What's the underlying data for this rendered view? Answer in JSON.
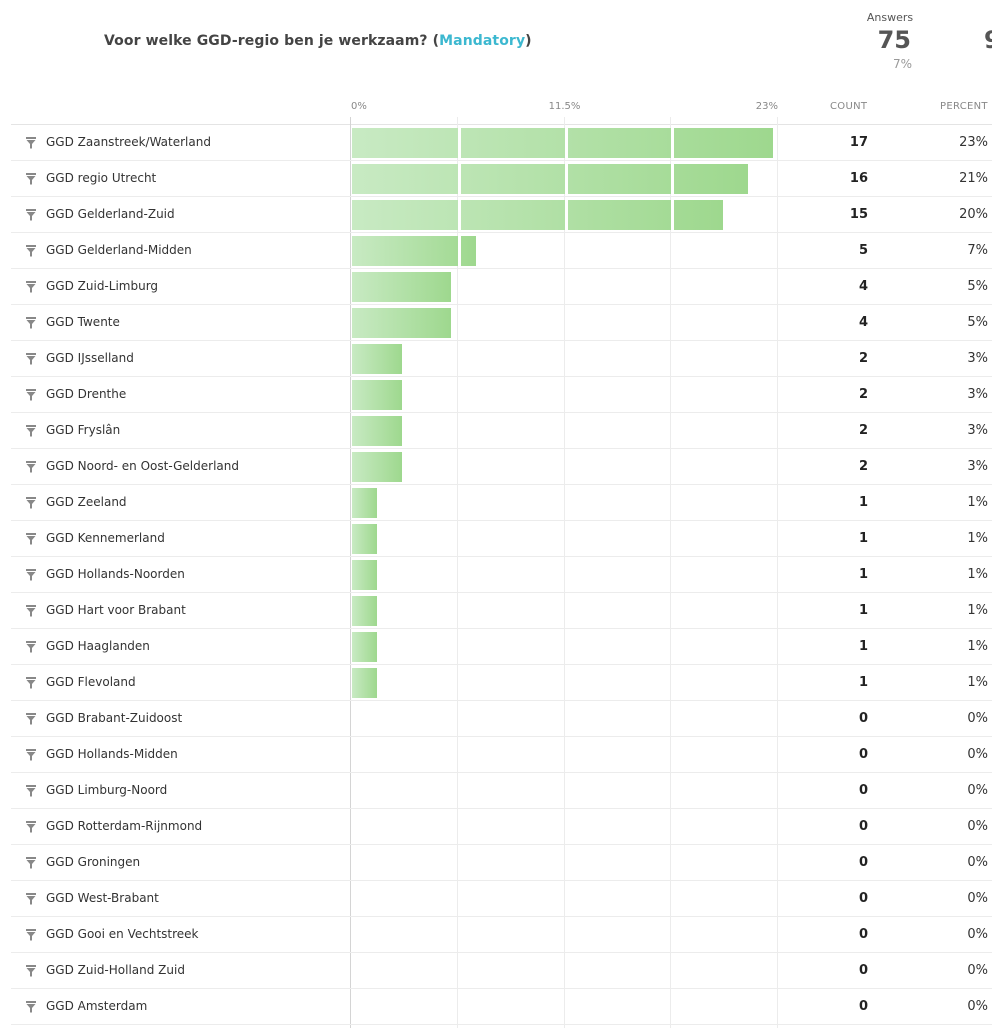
{
  "question": {
    "text": "Voor welke GGD-regio ben je werkzaam? (",
    "mandatory": "Mandatory",
    "close": ")"
  },
  "answers": {
    "label": "Answers",
    "value": "75",
    "percent": "7%",
    "clipped_next": "9"
  },
  "columns": {
    "count": "COUNT",
    "percent": "PERCENT"
  },
  "colors": {
    "bar_start": "#c8eac3",
    "bar_end": "#9ed88e",
    "accent": "#3cb8d0"
  },
  "icons": {
    "row_filter": "filter-funnel-icon"
  },
  "chart_data": {
    "type": "bar",
    "orientation": "horizontal",
    "title": "Voor welke GGD-regio ben je werkzaam?",
    "xlim": [
      0,
      23
    ],
    "ticks": [
      "0%",
      "11.5%",
      "23%"
    ],
    "grid": true,
    "categories": [
      "GGD Zaanstreek/Waterland",
      "GGD regio Utrecht",
      "GGD Gelderland-Zuid",
      "GGD Gelderland-Midden",
      "GGD Zuid-Limburg",
      "GGD Twente",
      "GGD IJsselland",
      "GGD Drenthe",
      "GGD Fryslân",
      "GGD Noord- en Oost-Gelderland",
      "GGD Zeeland",
      "GGD Kennemerland",
      "GGD Hollands-Noorden",
      "GGD Hart voor Brabant",
      "GGD Haaglanden",
      "GGD Flevoland",
      "GGD Brabant-Zuidoost",
      "GGD Hollands-Midden",
      "GGD Limburg-Noord",
      "GGD Rotterdam-Rijnmond",
      "GGD Groningen",
      "GGD West-Brabant",
      "GGD Gooi en Vechtstreek",
      "GGD Zuid-Holland Zuid",
      "GGD Amsterdam"
    ],
    "counts": [
      17,
      16,
      15,
      5,
      4,
      4,
      2,
      2,
      2,
      2,
      1,
      1,
      1,
      1,
      1,
      1,
      0,
      0,
      0,
      0,
      0,
      0,
      0,
      0,
      0
    ],
    "percents": [
      "23%",
      "21%",
      "20%",
      "7%",
      "5%",
      "5%",
      "3%",
      "3%",
      "3%",
      "3%",
      "1%",
      "1%",
      "1%",
      "1%",
      "1%",
      "1%",
      "0%",
      "0%",
      "0%",
      "0%",
      "0%",
      "0%",
      "0%",
      "0%",
      "0%"
    ]
  }
}
